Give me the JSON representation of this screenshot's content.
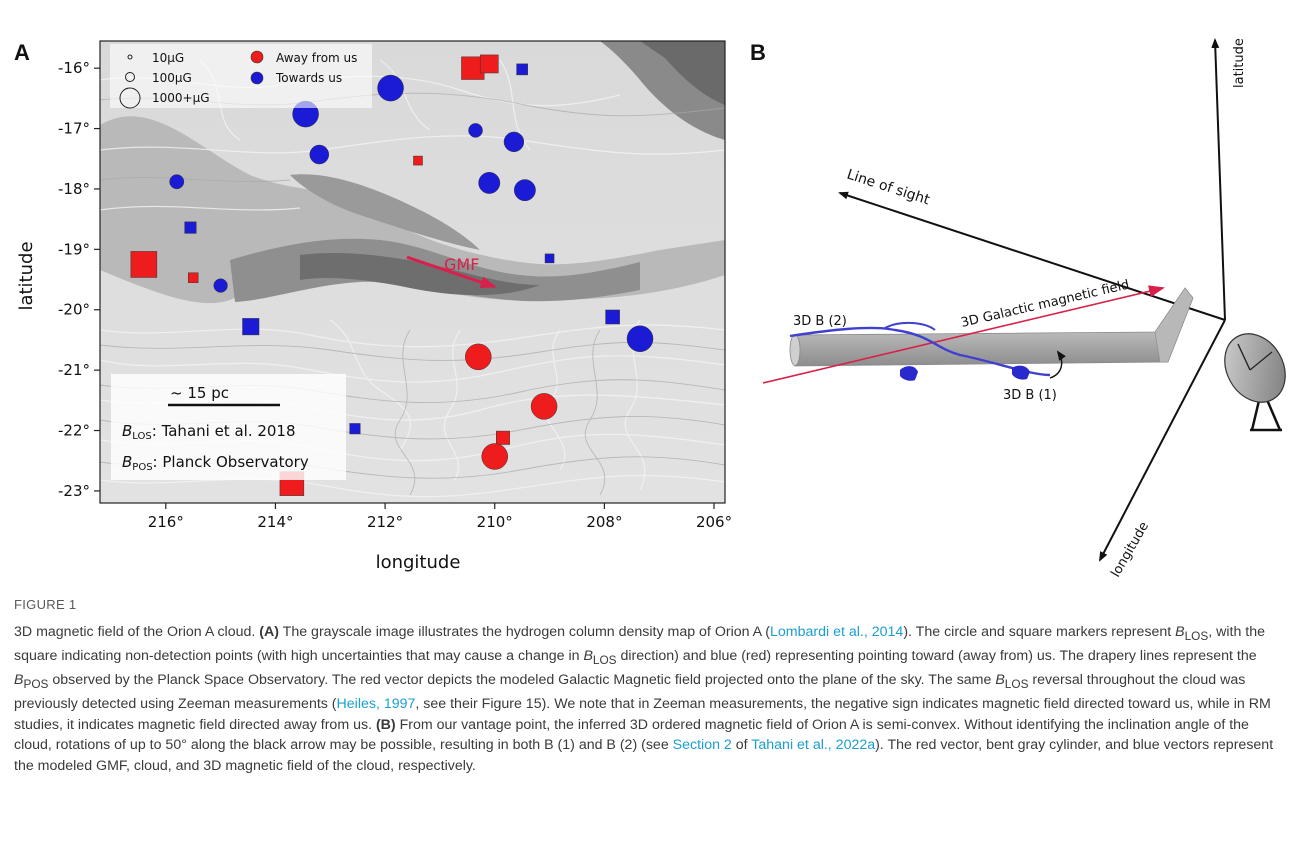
{
  "panel_a": {
    "label": "A",
    "xlabel": "longitude",
    "ylabel": "latitude",
    "x_ticks": [
      "216°",
      "214°",
      "212°",
      "210°",
      "208°",
      "206°"
    ],
    "y_ticks": [
      "-16°",
      "-17°",
      "-18°",
      "-19°",
      "-20°",
      "-21°",
      "-22°",
      "-23°"
    ],
    "legend": {
      "size_10": "10μG",
      "size_100": "100μG",
      "size_1000": "1000+μG",
      "away": "Away from us",
      "towards": "Towards us"
    },
    "gmf_label": "GMF",
    "scale_bar": "~ 15 pc",
    "blos_source": "Tahani et al. 2018",
    "bpos_source": "Planck Observatory",
    "blos_prefix": "B",
    "blos_sub": "LOS",
    "bpos_prefix": "B",
    "bpos_sub": "POS"
  },
  "panel_b": {
    "label": "B",
    "axis_latitude": "latitude",
    "axis_longitude": "longitude",
    "axis_los": "Line of sight",
    "gmf": "3D Galactic magnetic field",
    "b1": "3D B (1)",
    "b2": "3D B (2)"
  },
  "chart_data": {
    "type": "scatter",
    "xlabel": "longitude",
    "ylabel": "latitude",
    "xlim": [
      217.2,
      205.8
    ],
    "ylim": [
      -23.2,
      -15.55
    ],
    "colors": {
      "away": "#ee1c1c",
      "towards": "#1b1bd6"
    },
    "series": [
      {
        "name": "Away from us",
        "color": "#ee1c1c",
        "points": [
          {
            "x": 216.4,
            "y": -19.25,
            "shape": "square",
            "size": 1000
          },
          {
            "x": 210.4,
            "y": -16.0,
            "shape": "square",
            "size": 600
          },
          {
            "x": 210.1,
            "y": -15.93,
            "shape": "square",
            "size": 300
          },
          {
            "x": 211.4,
            "y": -17.53,
            "shape": "square",
            "size": 10
          },
          {
            "x": 215.5,
            "y": -19.47,
            "shape": "square",
            "size": 20
          },
          {
            "x": 210.3,
            "y": -20.78,
            "shape": "circle",
            "size": 900
          },
          {
            "x": 209.1,
            "y": -21.6,
            "shape": "circle",
            "size": 900
          },
          {
            "x": 209.85,
            "y": -22.12,
            "shape": "square",
            "size": 100
          },
          {
            "x": 210.0,
            "y": -22.43,
            "shape": "circle",
            "size": 900
          },
          {
            "x": 213.7,
            "y": -22.88,
            "shape": "square",
            "size": 700
          }
        ]
      },
      {
        "name": "Towards us",
        "color": "#1b1bd6",
        "points": [
          {
            "x": 211.9,
            "y": -16.33,
            "shape": "circle",
            "size": 900
          },
          {
            "x": 209.5,
            "y": -16.02,
            "shape": "square",
            "size": 40
          },
          {
            "x": 213.45,
            "y": -16.76,
            "shape": "circle",
            "size": 900
          },
          {
            "x": 210.35,
            "y": -17.03,
            "shape": "circle",
            "size": 120
          },
          {
            "x": 209.65,
            "y": -17.22,
            "shape": "circle",
            "size": 400
          },
          {
            "x": 213.2,
            "y": -17.43,
            "shape": "circle",
            "size": 350
          },
          {
            "x": 215.8,
            "y": -17.88,
            "shape": "circle",
            "size": 130
          },
          {
            "x": 210.1,
            "y": -17.9,
            "shape": "circle",
            "size": 500
          },
          {
            "x": 209.45,
            "y": -18.02,
            "shape": "circle",
            "size": 500
          },
          {
            "x": 215.55,
            "y": -18.64,
            "shape": "square",
            "size": 50
          },
          {
            "x": 209.0,
            "y": -19.15,
            "shape": "square",
            "size": 10
          },
          {
            "x": 215.0,
            "y": -19.6,
            "shape": "circle",
            "size": 110
          },
          {
            "x": 214.45,
            "y": -20.28,
            "shape": "square",
            "size": 220
          },
          {
            "x": 207.85,
            "y": -20.12,
            "shape": "square",
            "size": 120
          },
          {
            "x": 207.35,
            "y": -20.48,
            "shape": "circle",
            "size": 900
          },
          {
            "x": 212.55,
            "y": -21.97,
            "shape": "square",
            "size": 30
          }
        ]
      }
    ],
    "gmf_vector": {
      "from": [
        211.6,
        -19.13
      ],
      "to": [
        210.0,
        -19.62
      ]
    }
  },
  "caption": {
    "label": "FIGURE 1",
    "t1": "3D magnetic field of the Orion A cloud. ",
    "a_tag": "(A)",
    "t2": " The grayscale image illustrates the hydrogen column density map of Orion A (",
    "ref1": "Lombardi et al., 2014",
    "t3": "). The circle and square markers represent ",
    "b": "B",
    "los": "LOS",
    "pos": "POS",
    "t4": ", with the square indicating non-detection points (with high uncertainties that may cause a change in ",
    "t5": " direction) and blue (red) representing pointing toward (away from) us. The drapery lines represent the ",
    "t6": " observed by the Planck Space Observatory. The red vector depicts the modeled Galactic Magnetic field projected onto the plane of the sky. The same ",
    "t7": " reversal throughout the cloud was previously detected using Zeeman measurements (",
    "ref2": "Heiles, 1997",
    "t8": ", see their Figure 15). We note that in Zeeman measurements, the negative sign indicates magnetic field directed toward us, while in RM studies, it indicates magnetic field directed away from us. ",
    "b_tag": "(B)",
    "t9": " From our vantage point, the inferred 3D ordered magnetic field of Orion A is semi-convex. Without identifying the inclination angle of the cloud, rotations of up to 50° along the black arrow may be possible, resulting in both B (1) and B (2) (see ",
    "ref3": "Section 2",
    "t10": " of ",
    "ref4": "Tahani et al., 2022a",
    "t11": "). The red vector, bent gray cylinder, and blue vectors represent the modeled GMF, cloud, and 3D magnetic field of the cloud, respectively."
  }
}
